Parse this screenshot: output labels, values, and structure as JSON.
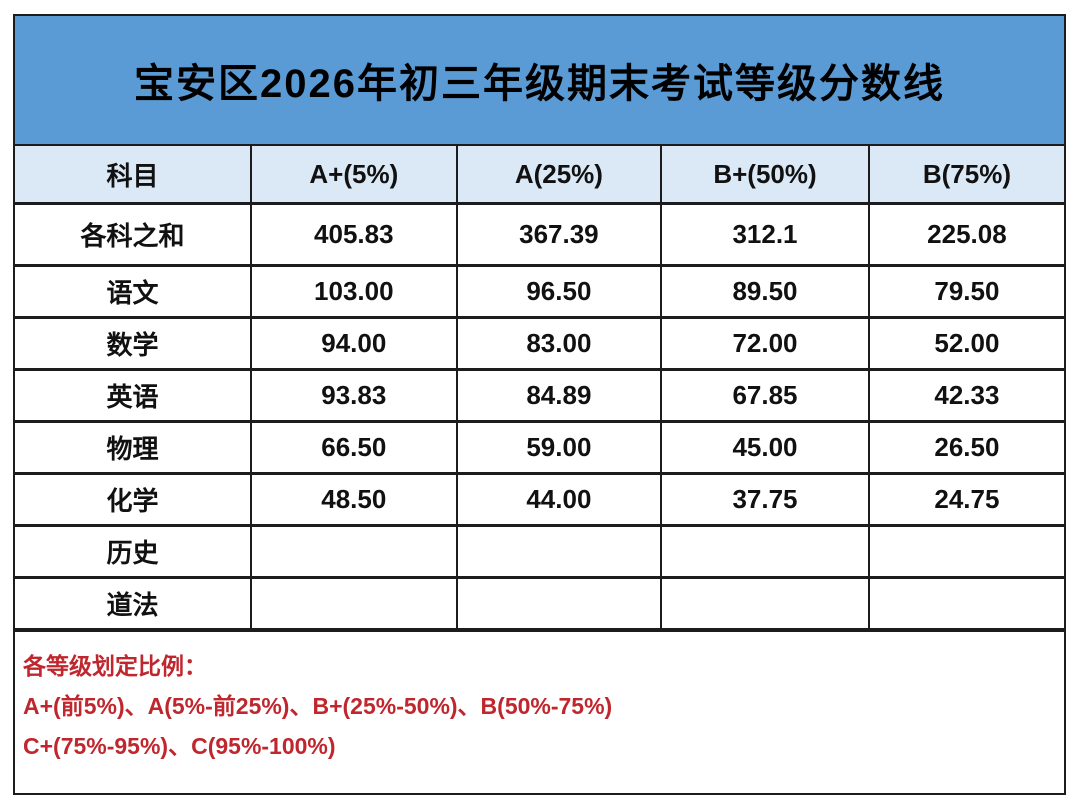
{
  "title": "宝安区2026年初三年级期末考试等级分数线",
  "colors": {
    "title_band_bg": "#5b9bd5",
    "header_row_bg": "#dbe9f6",
    "border": "#1c1c1c",
    "footer_text": "#c0262d",
    "title_text": "#000000",
    "cell_text": "#111111"
  },
  "table": {
    "headers": [
      "科目",
      "A+(5%)",
      "A(25%)",
      "B+(50%)",
      "B(75%)"
    ],
    "rows": [
      {
        "subject": "各科之和",
        "values": [
          "405.83",
          "367.39",
          "312.1",
          "225.08"
        ]
      },
      {
        "subject": "语文",
        "values": [
          "103.00",
          "96.50",
          "89.50",
          "79.50"
        ]
      },
      {
        "subject": "数学",
        "values": [
          "94.00",
          "83.00",
          "72.00",
          "52.00"
        ]
      },
      {
        "subject": "英语",
        "values": [
          "93.83",
          "84.89",
          "67.85",
          "42.33"
        ]
      },
      {
        "subject": "物理",
        "values": [
          "66.50",
          "59.00",
          "45.00",
          "26.50"
        ]
      },
      {
        "subject": "化学",
        "values": [
          "48.50",
          "44.00",
          "37.75",
          "24.75"
        ]
      },
      {
        "subject": "历史",
        "values": [
          "",
          "",
          "",
          ""
        ]
      },
      {
        "subject": "道法",
        "values": [
          "",
          "",
          "",
          ""
        ]
      }
    ]
  },
  "footer": {
    "lines": [
      "各等级划定比例：",
      "A+(前5%)、A(5%-前25%)、B+(25%-50%)、B(50%-75%)",
      "C+(75%-95%)、C(95%-100%)"
    ]
  },
  "chart_data": {
    "type": "table",
    "title": "宝安区2026年初三年级期末考试等级分数线",
    "columns": [
      "科目",
      "A+(5%)",
      "A(25%)",
      "B+(50%)",
      "B(75%)"
    ],
    "rows": [
      [
        "各科之和",
        405.83,
        367.39,
        312.1,
        225.08
      ],
      [
        "语文",
        103.0,
        96.5,
        89.5,
        79.5
      ],
      [
        "数学",
        94.0,
        83.0,
        72.0,
        52.0
      ],
      [
        "英语",
        93.83,
        84.89,
        67.85,
        42.33
      ],
      [
        "物理",
        66.5,
        59.0,
        45.0,
        26.5
      ],
      [
        "化学",
        48.5,
        44.0,
        37.75,
        24.75
      ],
      [
        "历史",
        null,
        null,
        null,
        null
      ],
      [
        "道法",
        null,
        null,
        null,
        null
      ]
    ],
    "notes": [
      "各等级划定比例：",
      "A+(前5%)、A(5%-前25%)、B+(25%-50%)、B(50%-75%)",
      "C+(75%-95%)、C(95%-100%)"
    ]
  }
}
